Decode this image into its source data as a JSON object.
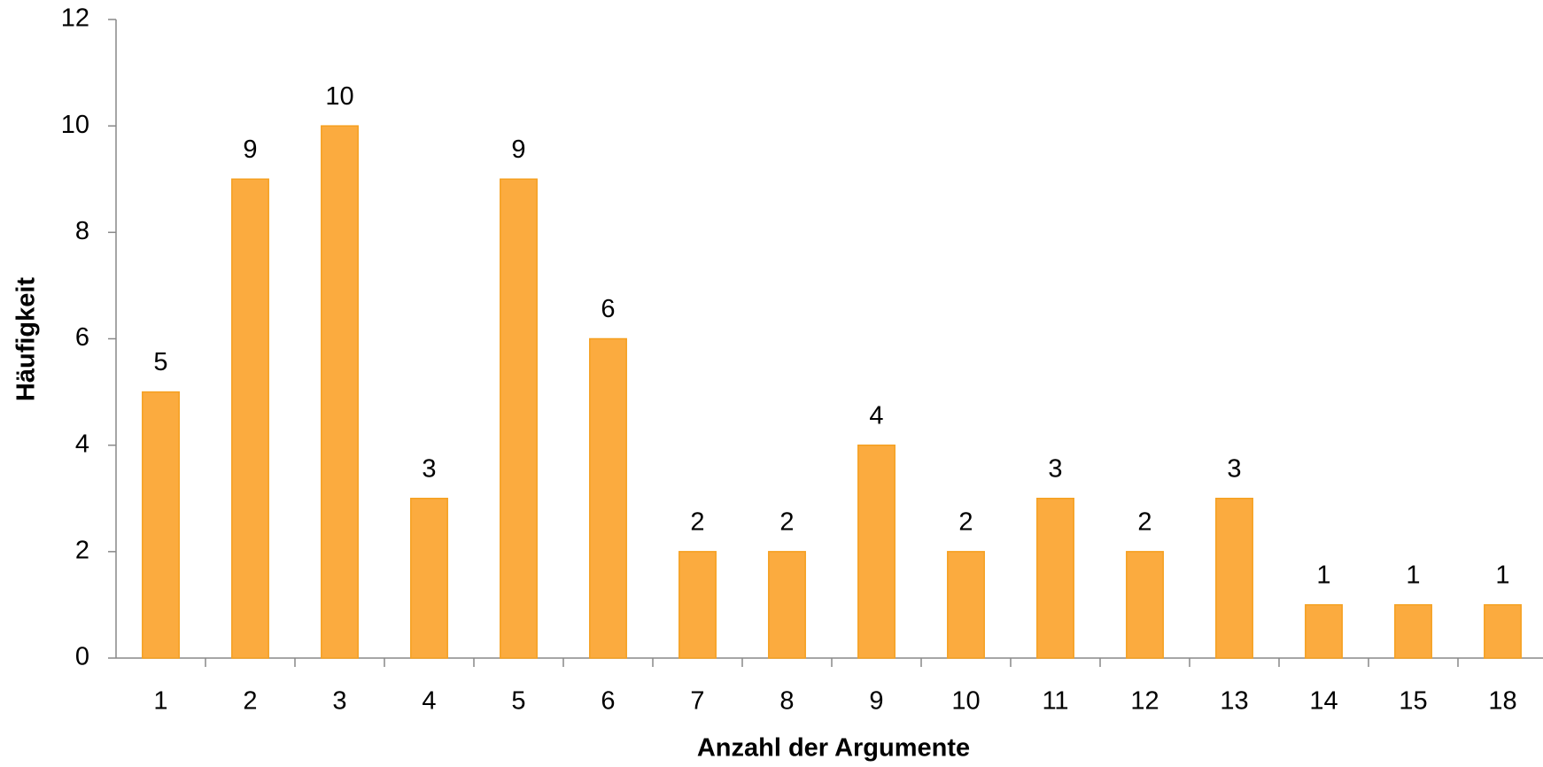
{
  "chart_data": {
    "type": "bar",
    "categories": [
      "1",
      "2",
      "3",
      "4",
      "5",
      "6",
      "7",
      "8",
      "9",
      "10",
      "11",
      "12",
      "13",
      "14",
      "15",
      "18"
    ],
    "values": [
      5,
      9,
      10,
      3,
      9,
      6,
      2,
      2,
      4,
      2,
      3,
      2,
      3,
      1,
      1,
      1
    ],
    "color": "#fbab3f",
    "x_label": "Anzahl der Argumente",
    "y_label": "Häufigkeit",
    "ylim": [
      0,
      12
    ],
    "yticks": [
      0,
      2,
      4,
      6,
      8,
      10,
      12
    ],
    "grid": false,
    "data_labels": true
  }
}
